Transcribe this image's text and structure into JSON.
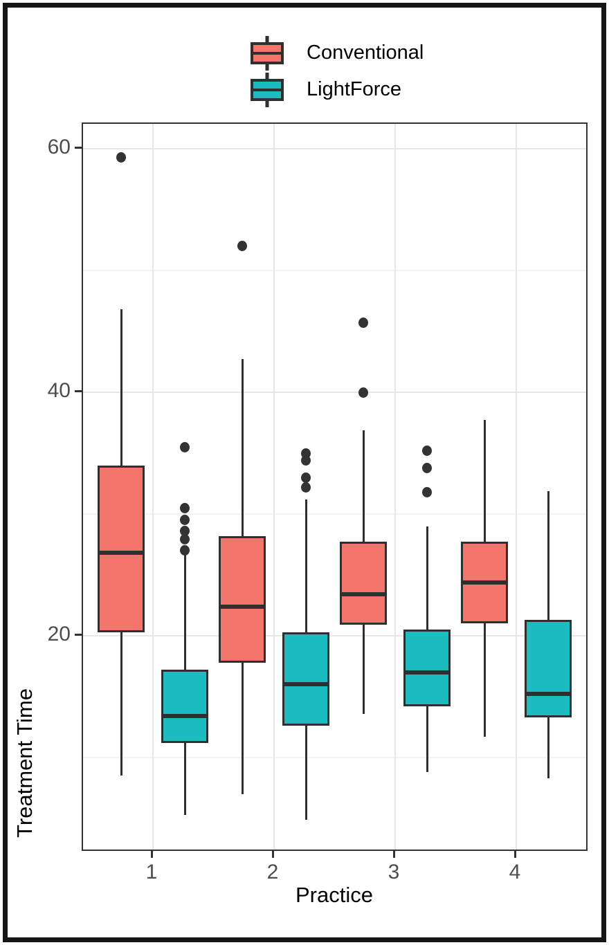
{
  "chart_data": {
    "type": "boxplot",
    "title": "",
    "categories": [
      "1",
      "2",
      "3",
      "4"
    ],
    "xlabel": "Practice",
    "ylabel": "Treatment Time",
    "ylim": [
      2,
      62
    ],
    "y_ticks_major": [
      20,
      40,
      60
    ],
    "y_ticks_minor": [
      10,
      30,
      50
    ],
    "grid": "on",
    "legend_position": "top-center",
    "series": [
      {
        "name": "Conventional",
        "color": "#F4756C",
        "boxes": [
          {
            "category": "1",
            "whisker_low": 8.5,
            "q1": 20.3,
            "median": 26.8,
            "q3": 34.0,
            "whisker_high": 46.8,
            "outliers": [
              59.3
            ]
          },
          {
            "category": "2",
            "whisker_low": 7.0,
            "q1": 17.8,
            "median": 22.4,
            "q3": 28.2,
            "whisker_high": 42.7,
            "outliers": [
              52.0
            ]
          },
          {
            "category": "3",
            "whisker_low": 13.6,
            "q1": 20.9,
            "median": 23.4,
            "q3": 27.7,
            "whisker_high": 36.9,
            "outliers": [
              45.7,
              40.0
            ]
          },
          {
            "category": "4",
            "whisker_low": 11.7,
            "q1": 21.0,
            "median": 24.4,
            "q3": 27.7,
            "whisker_high": 37.7,
            "outliers": []
          }
        ]
      },
      {
        "name": "LightForce",
        "color": "#1CBDC1",
        "boxes": [
          {
            "category": "1",
            "whisker_low": 5.3,
            "q1": 11.2,
            "median": 13.4,
            "q3": 17.2,
            "whisker_high": 26.7,
            "outliers": [
              35.5,
              30.5,
              29.5,
              28.6,
              27.9,
              27.0
            ]
          },
          {
            "category": "2",
            "whisker_low": 4.9,
            "q1": 12.6,
            "median": 16.0,
            "q3": 20.3,
            "whisker_high": 31.2,
            "outliers": [
              35.0,
              34.4,
              33.0,
              32.2
            ]
          },
          {
            "category": "3",
            "whisker_low": 8.8,
            "q1": 14.2,
            "median": 17.0,
            "q3": 20.5,
            "whisker_high": 29.0,
            "outliers": [
              35.2,
              33.8,
              31.8
            ]
          },
          {
            "category": "4",
            "whisker_low": 8.3,
            "q1": 13.3,
            "median": 15.2,
            "q3": 21.3,
            "whisker_high": 31.9,
            "outliers": []
          }
        ]
      }
    ]
  },
  "legend": {
    "items": [
      {
        "label": "Conventional",
        "color": "#F4756C"
      },
      {
        "label": "LightForce",
        "color": "#1CBDC1"
      }
    ]
  },
  "axes": {
    "y_title": "Treatment Time",
    "x_title": "Practice",
    "y_tick_labels": [
      "20",
      "40",
      "60"
    ],
    "x_tick_labels": [
      "1",
      "2",
      "3",
      "4"
    ]
  },
  "colors": {
    "box_stroke": "#2F2F2F",
    "median": "#2F2F2F",
    "whisker": "#2F2F2F",
    "outlier": "#333333",
    "grid_major": "#E7E7E7",
    "grid_minor": "#F3F3F3",
    "panel_border": "#333333",
    "axis_text": "#4D4D4D",
    "tick_mark": "#333333",
    "frame": "#161616"
  }
}
